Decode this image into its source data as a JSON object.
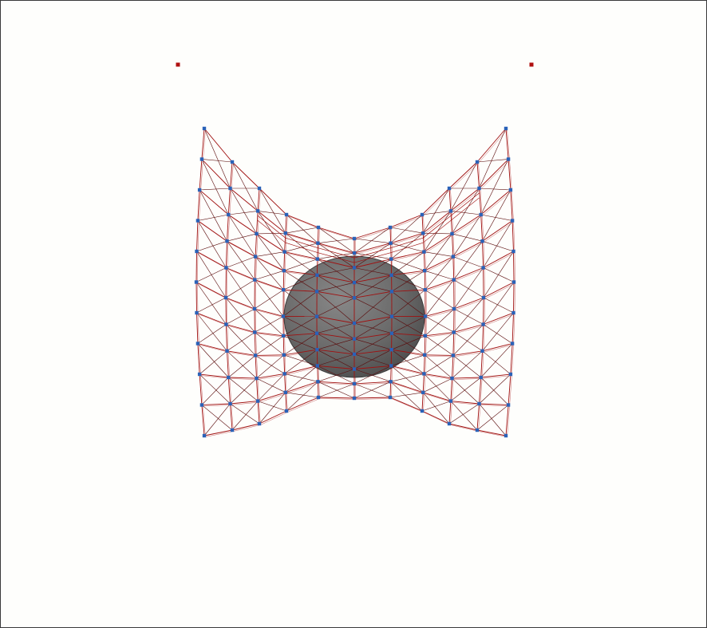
{
  "scene": {
    "background": "#fefefc",
    "colors": {
      "cloth_edge": "#a01010",
      "cloth_shear": "#5a0a0a",
      "cloth_node": "#2a62b8",
      "anchor_point": "#b01010",
      "sphere_fill": "#6b6b6b",
      "sphere_edge": "#3c3c3c",
      "frame": "#3a3a3a"
    },
    "cloth": {
      "rows": 10,
      "cols": 10
    },
    "anchors": {
      "count": 2
    },
    "sphere": {
      "present": true
    }
  }
}
